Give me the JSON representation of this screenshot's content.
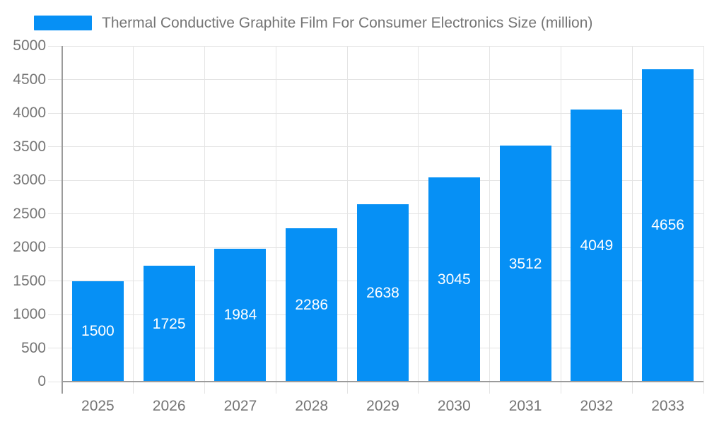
{
  "legend": {
    "series_label": "Thermal Conductive Graphite Film For Consumer Electronics Size (million)"
  },
  "chart_data": {
    "type": "bar",
    "title": "Thermal Conductive Graphite Film For Consumer Electronics Size (million)",
    "series_name": "Thermal Conductive Graphite Film For Consumer Electronics Size (million)",
    "categories": [
      "2025",
      "2026",
      "2027",
      "2028",
      "2029",
      "2030",
      "2031",
      "2032",
      "2033"
    ],
    "values": [
      1500,
      1725,
      1984,
      2286,
      2638,
      3045,
      3512,
      4049,
      4656
    ],
    "xlabel": "",
    "ylabel": "",
    "ylim": [
      0,
      5000
    ],
    "ytick_step": 500,
    "grid": true,
    "legend_position": "top-left",
    "bar_label_position": "inside-center",
    "colors": {
      "bar": "#0690F5",
      "bar_label": "#FFFFFF",
      "axis_text": "#757575",
      "title_text": "#757575",
      "gridline": "#E4E4E4",
      "axis_line": "#9B9B9B"
    }
  }
}
